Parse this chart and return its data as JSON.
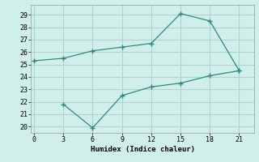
{
  "line1_x": [
    0,
    3,
    6,
    9,
    12,
    15,
    18,
    21
  ],
  "line1_y": [
    25.3,
    25.5,
    26.1,
    26.4,
    26.7,
    29.1,
    28.5,
    24.5
  ],
  "line2_x": [
    3,
    6,
    9,
    12,
    15,
    18,
    21
  ],
  "line2_y": [
    21.8,
    19.9,
    22.5,
    23.2,
    23.5,
    24.1,
    24.5
  ],
  "line_color": "#2e8b7a",
  "bg_color": "#d0eeea",
  "grid_color": "#aed4ce",
  "xlabel": "Humidex (Indice chaleur)",
  "xticks": [
    0,
    3,
    6,
    9,
    12,
    15,
    18,
    21
  ],
  "yticks": [
    20,
    21,
    22,
    23,
    24,
    25,
    26,
    27,
    28,
    29
  ],
  "ylim": [
    19.5,
    29.8
  ],
  "xlim": [
    -0.3,
    22.5
  ]
}
